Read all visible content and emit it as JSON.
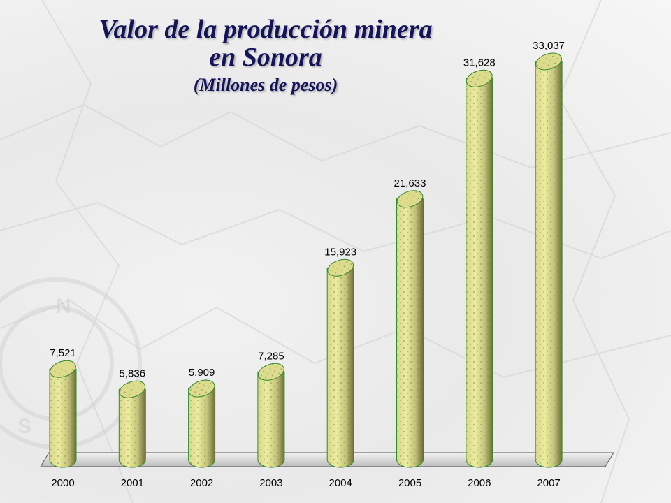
{
  "chart_data": {
    "type": "bar",
    "title": "Valor de la producción minera en Sonora",
    "subtitle": "(Millones de pesos)",
    "title_lines": [
      "Valor de la producción minera",
      "en Sonora"
    ],
    "categories": [
      "2000",
      "2001",
      "2002",
      "2003",
      "2004",
      "2005",
      "2006",
      "2007"
    ],
    "values": [
      7521,
      5836,
      5909,
      7285,
      15923,
      21633,
      31628,
      33037
    ],
    "value_labels": [
      "7,521",
      "5,836",
      "5,909",
      "7,285",
      "15,923",
      "21,633",
      "31,628",
      "33,037"
    ],
    "xlabel": "",
    "ylabel": "",
    "ylim": [
      0,
      35000
    ],
    "grid": false,
    "legend": "none",
    "bar_style": "3d-cylinder",
    "colors": {
      "bar_fill": "#e6e69a",
      "bar_shade": "#8d8d4a",
      "bar_outline": "#2e8a2e",
      "bar_top": "#dcdc8c",
      "dots": "#8a8a58",
      "title": "#14145a",
      "floor": "#d9d9d9"
    }
  }
}
